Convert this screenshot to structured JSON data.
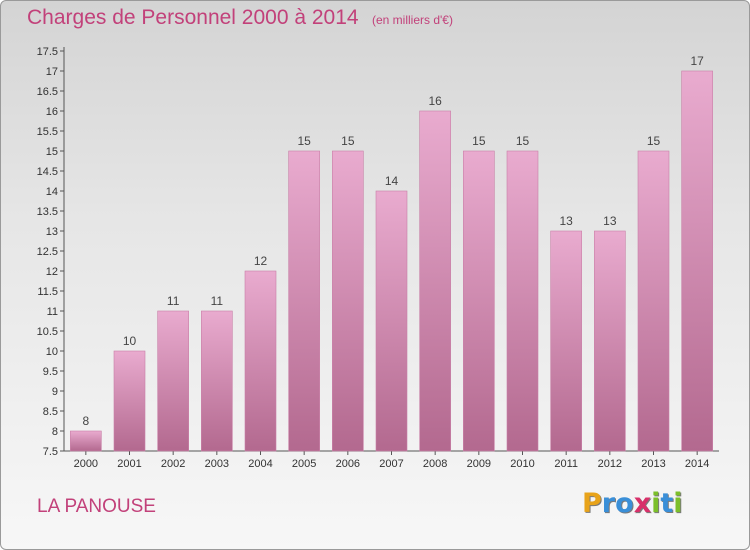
{
  "title": "Charges de Personnel 2000 à 2014",
  "subtitle": "(en milliers d'€)",
  "location_label": "LA PANOUSE",
  "logo": {
    "text": "Proxiti",
    "letters": [
      {
        "char": "P",
        "color": "#e8a31a"
      },
      {
        "char": "r",
        "color": "#3a8fd8"
      },
      {
        "char": "o",
        "color": "#3a8fd8"
      },
      {
        "char": "x",
        "color": "#d8306a"
      },
      {
        "char": "i",
        "color": "#7cbf2a"
      },
      {
        "char": "t",
        "color": "#3a8fd8"
      },
      {
        "char": "i",
        "color": "#7cbf2a"
      }
    ]
  },
  "colors": {
    "accent": "#c2417a",
    "bar_top": "#e9abcf",
    "bar_bottom": "#b3698f",
    "bar_edge": "#c97fa7"
  },
  "chart_data": {
    "type": "bar",
    "categories": [
      "2000",
      "2001",
      "2002",
      "2003",
      "2004",
      "2005",
      "2006",
      "2007",
      "2008",
      "2009",
      "2010",
      "2011",
      "2012",
      "2013",
      "2014"
    ],
    "values": [
      8,
      10,
      11,
      11,
      12,
      15,
      15,
      14,
      16,
      15,
      15,
      13,
      13,
      15,
      17
    ],
    "data_labels": [
      "8",
      "10",
      "11",
      "11",
      "12",
      "15",
      "15",
      "14",
      "16",
      "15",
      "15",
      "13",
      "13",
      "15",
      "17"
    ],
    "y_ticks": [
      "7.5",
      "8",
      "8.5",
      "9",
      "9.5",
      "10",
      "10.5",
      "11",
      "11.5",
      "12",
      "12.5",
      "13",
      "13.5",
      "14",
      "14.5",
      "15",
      "15.5",
      "16",
      "16.5",
      "17",
      "17.5"
    ],
    "ylim": [
      7.5,
      17.5
    ],
    "grid": false,
    "legend": "none"
  }
}
